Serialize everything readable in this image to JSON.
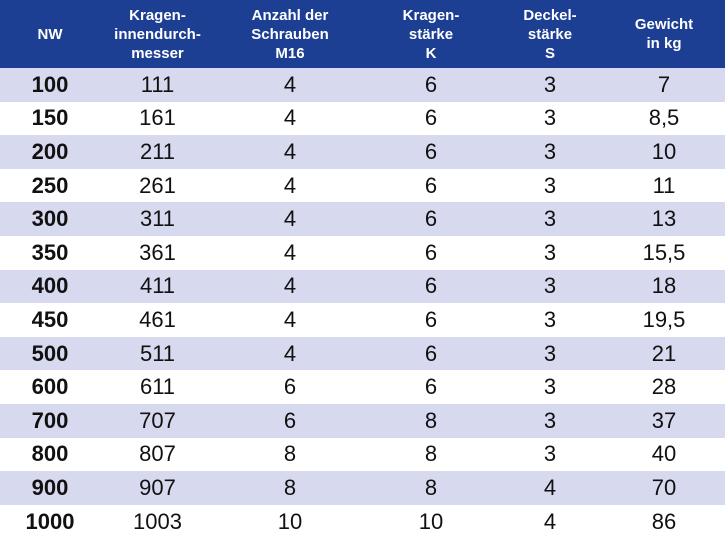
{
  "table": {
    "headers": [
      "NW",
      "Kragen-\ninnendurch-\nmesser",
      "Anzahl der\nSchrauben\nM16",
      "Kragen-\nstärke\nK",
      "Deckel-\nstärke\nS",
      "Gewicht\nin kg"
    ],
    "rows": [
      [
        "100",
        "111",
        "4",
        "6",
        "3",
        "7"
      ],
      [
        "150",
        "161",
        "4",
        "6",
        "3",
        "8,5"
      ],
      [
        "200",
        "211",
        "4",
        "6",
        "3",
        "10"
      ],
      [
        "250",
        "261",
        "4",
        "6",
        "3",
        "11"
      ],
      [
        "300",
        "311",
        "4",
        "6",
        "3",
        "13"
      ],
      [
        "350",
        "361",
        "4",
        "6",
        "3",
        "15,5"
      ],
      [
        "400",
        "411",
        "4",
        "6",
        "3",
        "18"
      ],
      [
        "450",
        "461",
        "4",
        "6",
        "3",
        "19,5"
      ],
      [
        "500",
        "511",
        "4",
        "6",
        "3",
        "21"
      ],
      [
        "600",
        "611",
        "6",
        "6",
        "3",
        "28"
      ],
      [
        "700",
        "707",
        "6",
        "8",
        "3",
        "37"
      ],
      [
        "800",
        "807",
        "8",
        "8",
        "3",
        "40"
      ],
      [
        "900",
        "907",
        "8",
        "8",
        "4",
        "70"
      ],
      [
        "1000",
        "1003",
        "10",
        "10",
        "4",
        "86"
      ]
    ]
  },
  "colors": {
    "header_bg": "#1d3f93",
    "header_text": "#ffffff",
    "shaded_row": "#d7d9ee",
    "plain_row": "#ffffff"
  }
}
